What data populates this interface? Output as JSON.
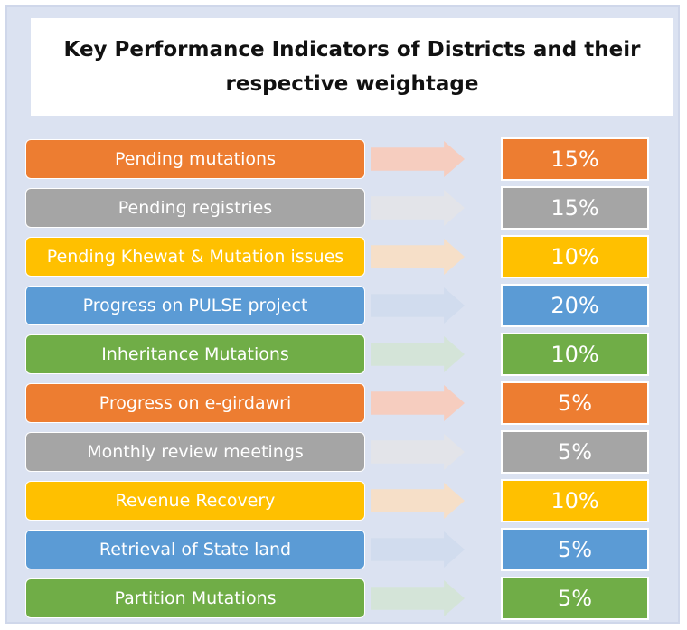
{
  "title": "Key Performance Indicators of Districts and their respective weightage",
  "colors": {
    "orange": "#ed7d31",
    "gray": "#a5a5a5",
    "yellow": "#ffc000",
    "blue": "#5b9bd5",
    "green": "#70ad47",
    "panel": "#dbe2f1"
  },
  "kpis": [
    {
      "label": "Pending mutations",
      "weight": "15%",
      "color": "#ed7d31",
      "arrow": "#f6cdbf"
    },
    {
      "label": "Pending registries",
      "weight": "15%",
      "color": "#a5a5a5",
      "arrow": "#e3e4e9"
    },
    {
      "label": "Pending Khewat & Mutation issues",
      "weight": "10%",
      "color": "#ffc000",
      "arrow": "#f6dfc8"
    },
    {
      "label": "Progress on PULSE project",
      "weight": "20%",
      "color": "#5b9bd5",
      "arrow": "#d1dcee"
    },
    {
      "label": "Inheritance Mutations",
      "weight": "10%",
      "color": "#70ad47",
      "arrow": "#d4e4d8"
    },
    {
      "label": "Progress on e-girdawri",
      "weight": "5%",
      "color": "#ed7d31",
      "arrow": "#f6cdbf"
    },
    {
      "label": "Monthly review meetings",
      "weight": "5%",
      "color": "#a5a5a5",
      "arrow": "#e3e4e9"
    },
    {
      "label": "Revenue Recovery",
      "weight": "10%",
      "color": "#ffc000",
      "arrow": "#f6dfc8"
    },
    {
      "label": "Retrieval of State land",
      "weight": "5%",
      "color": "#5b9bd5",
      "arrow": "#d1dcee"
    },
    {
      "label": "Partition Mutations",
      "weight": "5%",
      "color": "#70ad47",
      "arrow": "#d4e4d8"
    }
  ]
}
